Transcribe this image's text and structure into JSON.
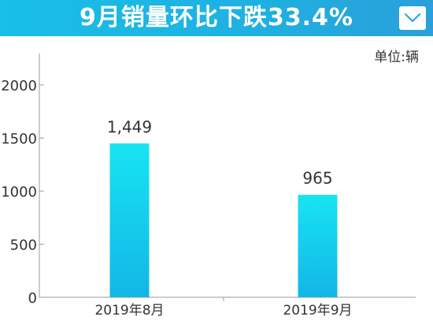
{
  "header": {
    "title": "9月销量环比下跌33.4%",
    "menu_icon": "chevron-down-icon",
    "background_color": "#1fb0e2"
  },
  "unit_label": "单位:辆",
  "chart_data": {
    "type": "bar",
    "categories": [
      "2019年8月",
      "2019年9月"
    ],
    "values": [
      1449,
      965
    ],
    "value_labels": [
      "1,449",
      "965"
    ],
    "title": "9月销量环比下跌33.4%",
    "unit": "单位:辆",
    "xlabel": "",
    "ylabel": "",
    "ylim": [
      0,
      2000
    ],
    "yticks": [
      0,
      500,
      1000,
      1500,
      2000
    ],
    "grid": false,
    "bar_color_top": "#18e4f2",
    "bar_color_bottom": "#13b6e6"
  }
}
